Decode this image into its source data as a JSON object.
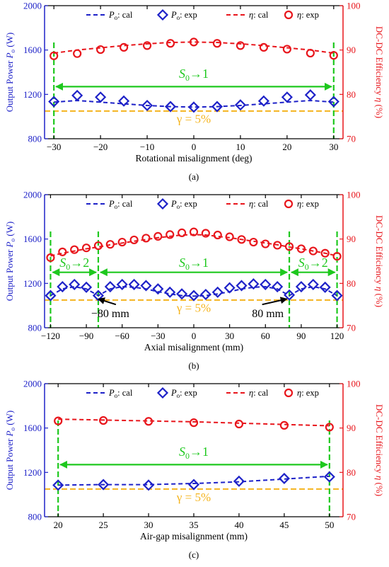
{
  "colors": {
    "power": "#1e22c8",
    "efficiency": "#e8161c",
    "arrow": "#1ec81e",
    "gamma": "#f5b41e",
    "axis": "#000000"
  },
  "legend": {
    "p_cal": {
      "sym": "P",
      "sub": "o",
      "suffix": ": cal"
    },
    "p_exp": {
      "sym": "P",
      "sub": "o",
      "suffix": ": exp"
    },
    "e_cal": {
      "sym": "η",
      "suffix": ": cal"
    },
    "e_exp": {
      "sym": "η",
      "suffix": ": exp"
    }
  },
  "chart_data": [
    {
      "type": "line",
      "caption": "(a)",
      "xlabel": "Rotational misalignment (deg)",
      "ylabel_left": {
        "text": "Output Power ",
        "sym": "P",
        "sub": "o",
        "unit": " (W)"
      },
      "ylabel_right": {
        "text": "DC-DC Efficiency ",
        "sym": "η",
        "unit": " (%)"
      },
      "xlim": [
        -32,
        32
      ],
      "xticks": [
        -30,
        -20,
        -10,
        0,
        10,
        20,
        30
      ],
      "yleft_lim": [
        800,
        2000
      ],
      "yleft_ticks": [
        800,
        1200,
        1600,
        2000
      ],
      "yright_lim": [
        70,
        100
      ],
      "yright_ticks": [
        70,
        80,
        90,
        100
      ],
      "series": [
        {
          "name": "Po: cal",
          "axis": "left",
          "style": "dashed-line",
          "x": [
            -30,
            -25,
            -20,
            -15,
            -10,
            -5,
            0,
            5,
            10,
            15,
            20,
            25,
            30
          ],
          "y": [
            1130,
            1145,
            1130,
            1115,
            1100,
            1090,
            1085,
            1090,
            1100,
            1115,
            1130,
            1145,
            1130
          ]
        },
        {
          "name": "Po: exp",
          "axis": "left",
          "style": "diamond",
          "x": [
            -30,
            -25,
            -20,
            -15,
            -10,
            -5,
            0,
            5,
            10,
            15,
            20,
            25,
            30
          ],
          "y": [
            1135,
            1190,
            1175,
            1140,
            1100,
            1090,
            1085,
            1090,
            1105,
            1140,
            1175,
            1195,
            1135
          ]
        },
        {
          "name": "η: cal",
          "axis": "right",
          "style": "dashed-line",
          "x": [
            -30,
            -25,
            -20,
            -15,
            -10,
            -5,
            0,
            5,
            10,
            15,
            20,
            25,
            30
          ],
          "y": [
            89.3,
            90.0,
            90.5,
            91.0,
            91.4,
            91.7,
            91.8,
            91.7,
            91.4,
            91.0,
            90.5,
            90.0,
            89.3
          ]
        },
        {
          "name": "η: exp",
          "axis": "right",
          "style": "circle",
          "x": [
            -30,
            -25,
            -20,
            -15,
            -10,
            -5,
            0,
            5,
            10,
            15,
            20,
            25,
            30
          ],
          "y": [
            88.7,
            89.2,
            90.1,
            90.6,
            91.0,
            91.5,
            91.8,
            91.5,
            91.0,
            90.6,
            90.2,
            89.3,
            88.8
          ]
        }
      ],
      "threshold": {
        "y": 1050,
        "axis": "left",
        "label": "γ = 5%",
        "label_x": 0,
        "label_y": 945
      },
      "vlines": [
        -30,
        30
      ],
      "arrows": [
        {
          "from": -30,
          "to": 30,
          "y": 1270,
          "label_sym": "S",
          "label_sub": "0",
          "label_rest": "→1",
          "label_x": 0,
          "label_y": 1350
        }
      ],
      "annotations": []
    },
    {
      "type": "line",
      "caption": "(b)",
      "xlabel": "Axial misalignment (mm)",
      "ylabel_left": {
        "text": "Output Power ",
        "sym": "P",
        "sub": "o",
        "unit": " (W)"
      },
      "ylabel_right": {
        "text": "DC-DC Efficiency ",
        "sym": "η",
        "unit": " (%)"
      },
      "xlim": [
        -125,
        125
      ],
      "xticks": [
        -120,
        -90,
        -60,
        -30,
        0,
        30,
        60,
        90,
        120
      ],
      "yleft_lim": [
        800,
        2000
      ],
      "yleft_ticks": [
        800,
        1200,
        1600,
        2000
      ],
      "yright_lim": [
        70,
        100
      ],
      "yright_ticks": [
        70,
        80,
        90,
        100
      ],
      "series": [
        {
          "name": "Po: cal",
          "axis": "left",
          "style": "dashed-line",
          "x": [
            -120,
            -110,
            -100,
            -90,
            -80,
            -70,
            -60,
            -50,
            -40,
            -30,
            -20,
            -10,
            0,
            10,
            20,
            30,
            40,
            50,
            60,
            70,
            80,
            90,
            100,
            110,
            120
          ],
          "y": [
            1090,
            1150,
            1170,
            1150,
            1090,
            1150,
            1170,
            1165,
            1150,
            1125,
            1105,
            1090,
            1085,
            1090,
            1105,
            1125,
            1150,
            1165,
            1170,
            1150,
            1090,
            1150,
            1170,
            1150,
            1090
          ]
        },
        {
          "name": "Po: exp",
          "axis": "left",
          "style": "diamond",
          "x": [
            -120,
            -110,
            -100,
            -90,
            -80,
            -70,
            -60,
            -50,
            -40,
            -30,
            -20,
            -10,
            0,
            10,
            20,
            30,
            40,
            50,
            60,
            70,
            80,
            90,
            100,
            110,
            120
          ],
          "y": [
            1090,
            1170,
            1190,
            1165,
            1090,
            1170,
            1190,
            1190,
            1180,
            1150,
            1120,
            1105,
            1090,
            1100,
            1120,
            1160,
            1180,
            1195,
            1190,
            1170,
            1095,
            1170,
            1190,
            1165,
            1090
          ]
        },
        {
          "name": "η: cal",
          "axis": "right",
          "style": "dashed-line",
          "x": [
            -120,
            -110,
            -100,
            -90,
            -80,
            -70,
            -60,
            -50,
            -40,
            -30,
            -20,
            -10,
            0,
            10,
            20,
            30,
            40,
            50,
            60,
            70,
            80,
            90,
            100,
            110,
            120
          ],
          "y": [
            86.2,
            86.8,
            87.3,
            87.8,
            88.2,
            88.7,
            89.1,
            89.5,
            89.9,
            90.3,
            90.6,
            90.9,
            91.0,
            90.9,
            90.6,
            90.3,
            89.9,
            89.5,
            89.1,
            88.7,
            88.2,
            87.8,
            87.3,
            86.8,
            86.2
          ]
        },
        {
          "name": "η: exp",
          "axis": "right",
          "style": "circle",
          "x": [
            -120,
            -110,
            -100,
            -90,
            -80,
            -70,
            -60,
            -50,
            -40,
            -30,
            -20,
            -10,
            0,
            10,
            20,
            30,
            40,
            50,
            60,
            70,
            80,
            90,
            100,
            110,
            120
          ],
          "y": [
            85.8,
            87.1,
            87.6,
            88.0,
            88.5,
            88.8,
            89.3,
            89.8,
            90.2,
            90.6,
            91.0,
            91.4,
            91.6,
            91.3,
            90.9,
            90.5,
            89.9,
            89.3,
            88.9,
            88.6,
            88.3,
            87.8,
            87.3,
            86.8,
            86.1
          ]
        }
      ],
      "threshold": {
        "y": 1050,
        "axis": "left",
        "label": "γ = 5%",
        "label_x": 0,
        "label_y": 945
      },
      "vlines": [
        -120,
        -80,
        80,
        120
      ],
      "arrows": [
        {
          "from": -120,
          "to": -80,
          "y": 1300,
          "label_sym": "S",
          "label_sub": "0",
          "label_rest": "→2",
          "label_x": -100,
          "label_y": 1350
        },
        {
          "from": -80,
          "to": 80,
          "y": 1300,
          "label_sym": "S",
          "label_sub": "0",
          "label_rest": "→1",
          "label_x": 0,
          "label_y": 1350
        },
        {
          "from": 80,
          "to": 120,
          "y": 1300,
          "label_sym": "S",
          "label_sub": "0",
          "label_rest": "→2",
          "label_x": 100,
          "label_y": 1350
        }
      ],
      "annotations": [
        {
          "text": "−80 mm",
          "tx": -70,
          "ty": 920,
          "ax": -80,
          "ay": 1060
        },
        {
          "text": "80 mm",
          "tx": 62,
          "ty": 920,
          "ax": 78,
          "ay": 1060
        }
      ]
    },
    {
      "type": "line",
      "caption": "(c)",
      "xlabel": "Air-gap misalignment (mm)",
      "ylabel_left": {
        "text": "Output Power ",
        "sym": "P",
        "sub": "o",
        "unit": " (W)"
      },
      "ylabel_right": {
        "text": "DC-DC Efficiency ",
        "sym": "η",
        "unit": " (%)"
      },
      "xlim": [
        18.5,
        51.5
      ],
      "xticks": [
        20,
        25,
        30,
        35,
        40,
        45,
        50
      ],
      "yleft_lim": [
        800,
        2000
      ],
      "yleft_ticks": [
        800,
        1200,
        1600,
        2000
      ],
      "yright_lim": [
        70,
        100
      ],
      "yright_ticks": [
        70,
        80,
        90,
        100
      ],
      "series": [
        {
          "name": "Po: cal",
          "axis": "left",
          "style": "dashed-line",
          "x": [
            20,
            25,
            30,
            35,
            40,
            45,
            50
          ],
          "y": [
            1085,
            1090,
            1090,
            1100,
            1115,
            1140,
            1165
          ]
        },
        {
          "name": "Po: exp",
          "axis": "left",
          "style": "diamond",
          "x": [
            20,
            25,
            30,
            35,
            40,
            45,
            50
          ],
          "y": [
            1085,
            1090,
            1085,
            1090,
            1120,
            1145,
            1160
          ]
        },
        {
          "name": "η: cal",
          "axis": "right",
          "style": "dashed-line",
          "x": [
            20,
            25,
            30,
            35,
            40,
            45,
            50
          ],
          "y": [
            92.0,
            91.8,
            91.6,
            91.4,
            91.1,
            90.8,
            90.5
          ]
        },
        {
          "name": "η: exp",
          "axis": "right",
          "style": "circle",
          "x": [
            20,
            25,
            30,
            35,
            40,
            45,
            50
          ],
          "y": [
            91.6,
            91.7,
            91.5,
            91.2,
            90.9,
            90.6,
            90.2
          ]
        }
      ],
      "threshold": {
        "y": 1050,
        "axis": "left",
        "label": "γ = 5%",
        "label_x": 35,
        "label_y": 940
      },
      "vlines": [
        20,
        50
      ],
      "arrows": [
        {
          "from": 20,
          "to": 50,
          "y": 1270,
          "label_sym": "S",
          "label_sub": "0",
          "label_rest": "→1",
          "label_x": 35,
          "label_y": 1350
        }
      ],
      "annotations": []
    }
  ]
}
